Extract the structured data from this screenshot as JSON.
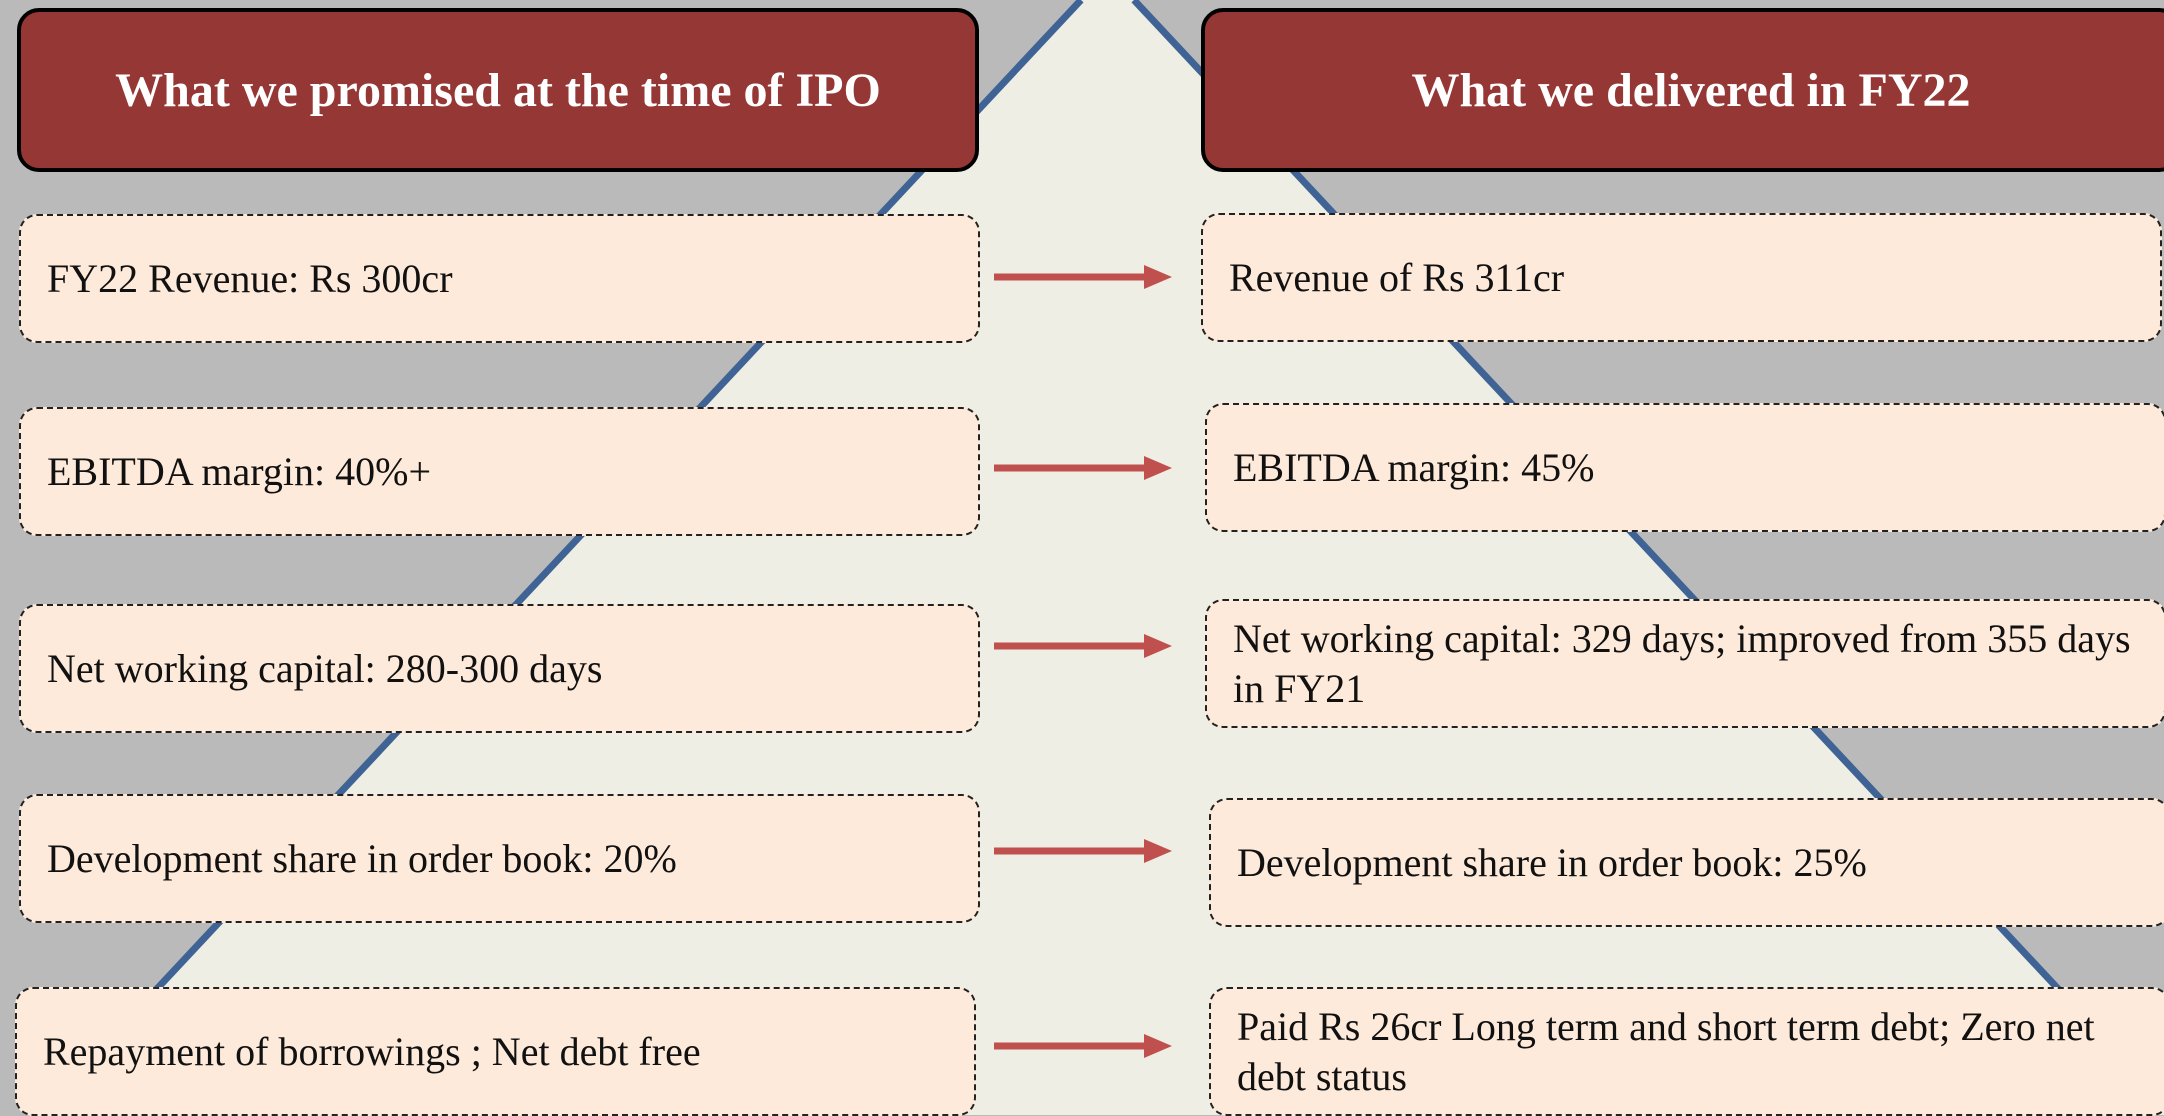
{
  "header": {
    "left": "What we promised at the time of IPO",
    "right": "What we delivered in FY22"
  },
  "rows": [
    {
      "promised": "FY22 Revenue: Rs 300cr",
      "delivered": "Revenue of Rs 311cr"
    },
    {
      "promised": "EBITDA margin: 40%+",
      "delivered": "EBITDA margin: 45%"
    },
    {
      "promised": "Net working capital:  280-300 days",
      "delivered": "Net working capital: 329 days; improved from 355 days in FY21"
    },
    {
      "promised": "Development share in order book: 20%",
      "delivered": "Development share in order book:  25%"
    },
    {
      "promised": "Repayment of borrowings ; Net debt free",
      "delivered": "Paid Rs 26cr Long term and short term debt; Zero net debt status"
    }
  ]
}
